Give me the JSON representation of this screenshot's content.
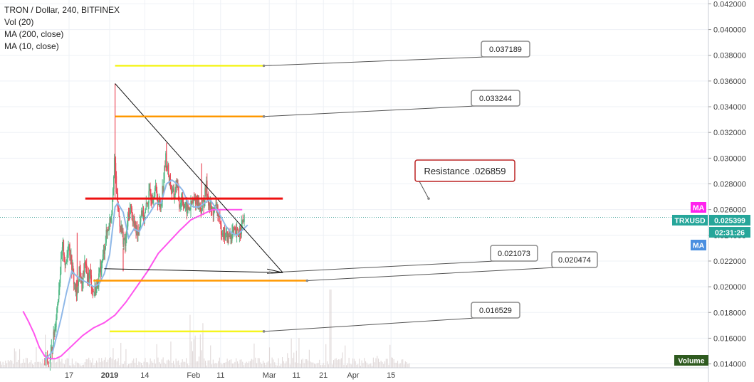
{
  "legend": {
    "title": "TRON / Dollar, 240, BITFINEX",
    "vol": "Vol (20)",
    "ma200": "MA (200, close)",
    "ma10": "MA (10, close)"
  },
  "colors": {
    "up": "#53b987",
    "down": "#eb4d5c",
    "ma200": "#ff55ee",
    "ma10": "#8fb8e8",
    "yellow": "#f5f51e",
    "orange": "#ff9800",
    "red": "#ee1111",
    "trend": "#111111",
    "axis_text": "#444444",
    "grid": "#eef1f6",
    "volume": "#e0d8d8"
  },
  "chart_data": {
    "type": "candlestick",
    "ylim": [
      0.0137,
      0.0423
    ],
    "y_ticks": [
      "0.042000",
      "0.040000",
      "0.038000",
      "0.036000",
      "0.034000",
      "0.032000",
      "0.030000",
      "0.028000",
      "0.026000",
      "0.024000",
      "0.022000",
      "0.020000",
      "0.018000",
      "0.016000",
      "0.014000"
    ],
    "x_ticks": [
      {
        "label": "17",
        "day": 17
      },
      {
        "label": "2019",
        "day": 32
      },
      {
        "label": "14",
        "day": 45
      },
      {
        "label": "Feb",
        "day": 63
      },
      {
        "label": "11",
        "day": 73
      },
      {
        "label": "Mar",
        "day": 91
      },
      {
        "label": "11",
        "day": 101
      },
      {
        "label": "21",
        "day": 111
      },
      {
        "label": "Apr",
        "day": 122
      },
      {
        "label": "15",
        "day": 136
      }
    ],
    "close_path": [
      [
        8,
        0.0144
      ],
      [
        10,
        0.0141
      ],
      [
        11,
        0.0153
      ],
      [
        12,
        0.0168
      ],
      [
        13,
        0.0188
      ],
      [
        14,
        0.0212
      ],
      [
        15,
        0.0232
      ],
      [
        16,
        0.0214
      ],
      [
        17,
        0.0236
      ],
      [
        18,
        0.022
      ],
      [
        19,
        0.0205
      ],
      [
        20,
        0.0193
      ],
      [
        21,
        0.0214
      ],
      [
        22,
        0.02
      ],
      [
        23,
        0.0217
      ],
      [
        24,
        0.0207
      ],
      [
        25,
        0.021
      ],
      [
        26,
        0.0196
      ],
      [
        27,
        0.0198
      ],
      [
        28,
        0.0205
      ],
      [
        29,
        0.0214
      ],
      [
        30,
        0.0226
      ],
      [
        31,
        0.024
      ],
      [
        32,
        0.0248
      ],
      [
        33,
        0.026
      ],
      [
        34,
        0.03
      ],
      [
        35,
        0.0268
      ],
      [
        36,
        0.025
      ],
      [
        37,
        0.024
      ],
      [
        38,
        0.0232
      ],
      [
        39,
        0.0253
      ],
      [
        40,
        0.0262
      ],
      [
        41,
        0.025
      ],
      [
        42,
        0.0244
      ],
      [
        43,
        0.0245
      ],
      [
        44,
        0.026
      ],
      [
        45,
        0.0253
      ],
      [
        46,
        0.0264
      ],
      [
        47,
        0.0272
      ],
      [
        48,
        0.027
      ],
      [
        49,
        0.0277
      ],
      [
        50,
        0.0268
      ],
      [
        51,
        0.0262
      ],
      [
        52,
        0.028
      ],
      [
        53,
        0.03
      ],
      [
        54,
        0.0288
      ],
      [
        55,
        0.0276
      ],
      [
        56,
        0.027
      ],
      [
        57,
        0.0282
      ],
      [
        58,
        0.0264
      ],
      [
        59,
        0.027
      ],
      [
        60,
        0.0262
      ],
      [
        61,
        0.026
      ],
      [
        62,
        0.0262
      ],
      [
        63,
        0.0265
      ],
      [
        64,
        0.0268
      ],
      [
        65,
        0.0265
      ],
      [
        66,
        0.026
      ],
      [
        67,
        0.0266
      ],
      [
        68,
        0.0278
      ],
      [
        69,
        0.0264
      ],
      [
        70,
        0.0258
      ],
      [
        71,
        0.026
      ],
      [
        72,
        0.0262
      ],
      [
        73,
        0.0246
      ],
      [
        74,
        0.0244
      ],
      [
        75,
        0.024
      ],
      [
        76,
        0.0238
      ],
      [
        77,
        0.024
      ],
      [
        78,
        0.0242
      ],
      [
        79,
        0.024
      ],
      [
        80,
        0.0243
      ],
      [
        81,
        0.0247
      ],
      [
        82,
        0.0254
      ]
    ],
    "ma200_path": [
      [
        0,
        0.0181
      ],
      [
        2,
        0.0173
      ],
      [
        4,
        0.0164
      ],
      [
        6,
        0.0153
      ],
      [
        8,
        0.0146
      ],
      [
        10,
        0.0144
      ],
      [
        12,
        0.0144
      ],
      [
        14,
        0.0146
      ],
      [
        18,
        0.0154
      ],
      [
        22,
        0.0162
      ],
      [
        26,
        0.0168
      ],
      [
        30,
        0.0172
      ],
      [
        34,
        0.0178
      ],
      [
        38,
        0.0188
      ],
      [
        42,
        0.02
      ],
      [
        46,
        0.0212
      ],
      [
        50,
        0.0226
      ],
      [
        54,
        0.0235
      ],
      [
        58,
        0.0244
      ],
      [
        62,
        0.0252
      ],
      [
        66,
        0.0256
      ],
      [
        70,
        0.026
      ],
      [
        74,
        0.026
      ],
      [
        78,
        0.026
      ],
      [
        81,
        0.026
      ]
    ],
    "ma10_path": [
      [
        8,
        0.0143
      ],
      [
        11,
        0.015
      ],
      [
        14,
        0.0175
      ],
      [
        16,
        0.0195
      ],
      [
        18,
        0.0212
      ],
      [
        20,
        0.0208
      ],
      [
        22,
        0.0205
      ],
      [
        24,
        0.0203
      ],
      [
        26,
        0.02
      ],
      [
        28,
        0.0202
      ],
      [
        30,
        0.021
      ],
      [
        32,
        0.0225
      ],
      [
        34,
        0.0262
      ],
      [
        35,
        0.0265
      ],
      [
        37,
        0.0258
      ],
      [
        39,
        0.0238
      ],
      [
        41,
        0.0245
      ],
      [
        43,
        0.0243
      ],
      [
        45,
        0.0252
      ],
      [
        47,
        0.0258
      ],
      [
        49,
        0.0265
      ],
      [
        51,
        0.0265
      ],
      [
        53,
        0.028
      ],
      [
        55,
        0.0283
      ],
      [
        57,
        0.028
      ],
      [
        59,
        0.0275
      ],
      [
        61,
        0.0265
      ],
      [
        63,
        0.0262
      ],
      [
        65,
        0.0262
      ],
      [
        67,
        0.0265
      ],
      [
        69,
        0.0268
      ],
      [
        71,
        0.0262
      ],
      [
        73,
        0.0255
      ],
      [
        75,
        0.0247
      ],
      [
        77,
        0.0242
      ],
      [
        79,
        0.024
      ],
      [
        81,
        0.0244
      ],
      [
        83,
        0.0248
      ]
    ],
    "horizontal_levels": [
      {
        "color_key": "yellow",
        "price": 0.037189,
        "from_day": 34,
        "to_day": 89,
        "label": "0.037189"
      },
      {
        "color_key": "orange",
        "price": 0.033244,
        "from_day": 34,
        "to_day": 89,
        "label": "0.033244"
      },
      {
        "color_key": "red",
        "price": 0.026859,
        "from_day": 23,
        "to_day": 96,
        "label": "Resistance .026859"
      },
      {
        "color_key": "orange",
        "price": 0.020474,
        "from_day": 26,
        "to_day": 105,
        "label": "0.020474"
      },
      {
        "color_key": "yellow",
        "price": 0.016529,
        "from_day": 32,
        "to_day": 89,
        "label": "0.016529"
      }
    ],
    "trendlines": [
      {
        "from": [
          34,
          0.0358
        ],
        "to": [
          96,
          0.0211
        ]
      },
      {
        "from": [
          30,
          0.0214
        ],
        "to": [
          96,
          0.0211
        ]
      }
    ],
    "support_label": {
      "price": 0.021073,
      "day": 93,
      "label": "0.021073"
    },
    "price_tags": {
      "ma_top": "MA",
      "symbol": "TRXUSD",
      "last_price": "0.025399",
      "countdown": "02:31:26",
      "ma_bottom": "MA",
      "volume": "Volume"
    },
    "last_price_value": 0.025399
  }
}
